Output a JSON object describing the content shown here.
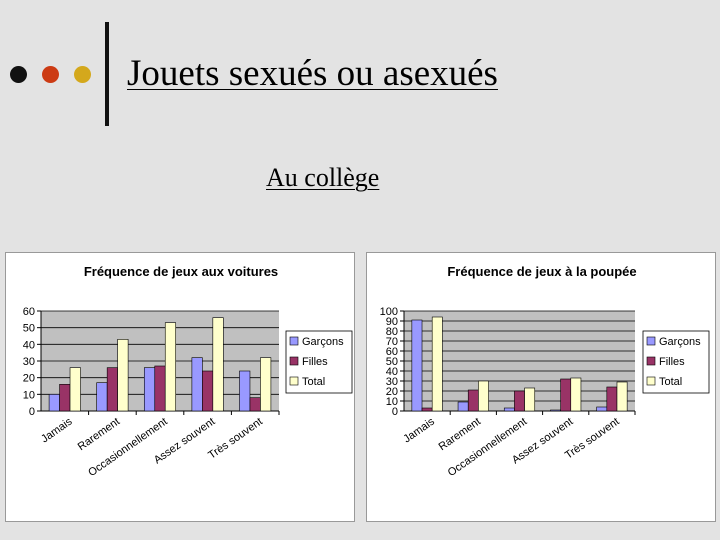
{
  "slide": {
    "title": "Jouets sexués ou asexués",
    "subtitle": "Au collège"
  },
  "colors": {
    "background": "#e3e3e3",
    "dot_black": "#111111",
    "dot_red": "#cc3b14",
    "dot_gold": "#d4a81c",
    "plot_area": "#c0c0c0",
    "garcons": "#9999ff",
    "filles": "#993366",
    "total": "#ffffcc"
  },
  "chart_data": [
    {
      "type": "bar",
      "title": "Fréquence de jeux aux voitures",
      "categories": [
        "Jamais",
        "Rarement",
        "Occasionnellement",
        "Assez souvent",
        "Très souvent"
      ],
      "series": [
        {
          "name": "Garçons",
          "values": [
            10,
            17,
            26,
            32,
            24
          ]
        },
        {
          "name": "Filles",
          "values": [
            16,
            26,
            27,
            24,
            8
          ]
        },
        {
          "name": "Total",
          "values": [
            26,
            43,
            53,
            56,
            32
          ]
        }
      ],
      "ylim": [
        0,
        60
      ],
      "yticks": [
        "0",
        "10",
        "20",
        "30",
        "40",
        "50",
        "60"
      ],
      "grid": true,
      "legend": "right"
    },
    {
      "type": "bar",
      "title": "Fréquence de jeux à la poupée",
      "categories": [
        "Jamais",
        "Rarement",
        "Occasionnellement",
        "Assez souvent",
        "Très souvent"
      ],
      "series": [
        {
          "name": "Garçons",
          "values": [
            91,
            9,
            3,
            1,
            4
          ]
        },
        {
          "name": "Filles",
          "values": [
            3,
            21,
            20,
            32,
            24
          ]
        },
        {
          "name": "Total",
          "values": [
            94,
            30,
            23,
            33,
            29
          ]
        }
      ],
      "ylim": [
        0,
        100
      ],
      "yticks": [
        "0",
        "10",
        "20",
        "30",
        "40",
        "50",
        "60",
        "70",
        "80",
        "90",
        "100"
      ],
      "grid": true,
      "legend": "right"
    }
  ]
}
